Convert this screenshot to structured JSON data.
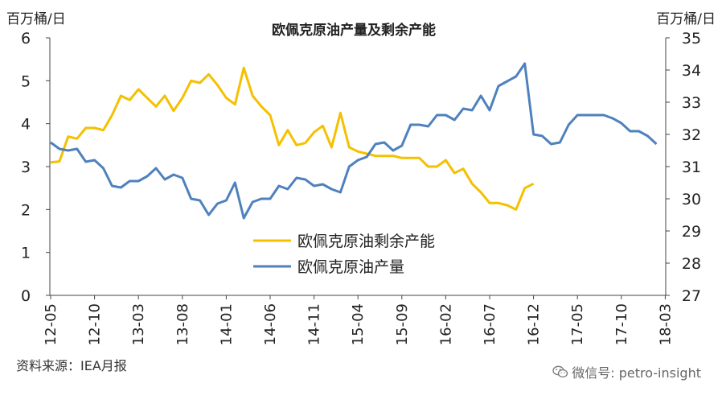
{
  "chart_data": {
    "type": "line",
    "title": "欧佩克原油产量及剩余产能",
    "y_left_label": "百万桶/日",
    "y_right_label": "百万桶/日",
    "y_left_range": [
      0,
      6
    ],
    "y_right_range": [
      27,
      35
    ],
    "y_left_ticks": [
      "0",
      "1",
      "2",
      "3",
      "4",
      "5",
      "6"
    ],
    "y_right_ticks": [
      "27",
      "28",
      "29",
      "30",
      "31",
      "32",
      "33",
      "34",
      "35"
    ],
    "x_ticks": [
      "12-05",
      "12-10",
      "13-03",
      "13-08",
      "14-01",
      "14-06",
      "14-11",
      "15-04",
      "15-09",
      "16-02",
      "16-07",
      "16-12",
      "17-05",
      "17-10",
      "18-03"
    ],
    "legend_position": "center",
    "grid": false,
    "series": [
      {
        "name": "欧佩克原油剩余产能",
        "axis": "left",
        "color": "#F5C000",
        "values": [
          3.1,
          3.12,
          3.7,
          3.65,
          3.9,
          3.9,
          3.85,
          4.2,
          4.65,
          4.55,
          4.8,
          4.6,
          4.4,
          4.65,
          4.3,
          4.6,
          5.0,
          4.95,
          5.15,
          4.9,
          4.6,
          4.45,
          5.3,
          4.65,
          4.4,
          4.2,
          3.5,
          3.85,
          3.5,
          3.55,
          3.8,
          3.95,
          3.45,
          4.25,
          3.45,
          3.35,
          3.3,
          3.25,
          3.25,
          3.25,
          3.2,
          3.2,
          3.2,
          3.0,
          3.0,
          3.15,
          2.85,
          2.95,
          2.6,
          2.4,
          2.15,
          2.15,
          2.1,
          2.0,
          2.5,
          2.6
        ]
      },
      {
        "name": "欧佩克原油产量",
        "axis": "right",
        "color": "#4F81BD",
        "values": [
          31.75,
          31.55,
          31.5,
          31.55,
          31.15,
          31.2,
          30.95,
          30.4,
          30.35,
          30.55,
          30.55,
          30.7,
          30.95,
          30.6,
          30.75,
          30.65,
          30.0,
          29.95,
          29.5,
          29.85,
          29.95,
          30.5,
          29.4,
          29.9,
          30.0,
          30.0,
          30.4,
          30.3,
          30.65,
          30.6,
          30.4,
          30.45,
          30.3,
          30.2,
          31.0,
          31.2,
          31.3,
          31.7,
          31.75,
          31.5,
          31.65,
          32.3,
          32.3,
          32.25,
          32.6,
          32.6,
          32.45,
          32.8,
          32.75,
          33.2,
          32.75,
          33.5,
          33.65,
          33.8,
          34.2,
          32.0,
          31.95,
          31.7,
          31.75,
          32.3,
          32.6,
          32.6,
          32.6,
          32.6,
          32.5,
          32.35,
          32.1,
          32.1,
          31.95,
          31.7
        ]
      }
    ]
  },
  "footer": {
    "source": "资料来源：IEA月报",
    "watermark": "微信号: petro-insight",
    "watermark_icon": "wechat-icon"
  }
}
